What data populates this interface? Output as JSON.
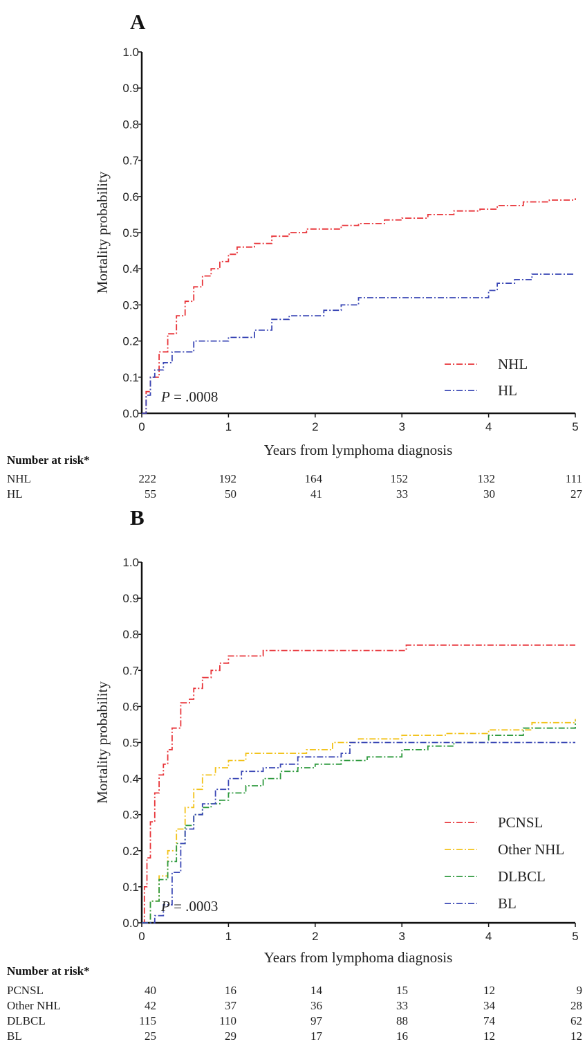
{
  "chart_data": [
    {
      "type": "line",
      "panel_label": "A",
      "xlabel": "Years from lymphoma diagnosis",
      "ylabel": "Mortality probability",
      "xlim": [
        0,
        5
      ],
      "ylim": [
        0,
        1.0
      ],
      "x_ticks": [
        "0",
        "1",
        "2",
        "3",
        "4",
        "5"
      ],
      "y_ticks": [
        "0.0",
        "0.1",
        "0.2",
        "0.3",
        "0.4",
        "0.5",
        "0.6",
        "0.7",
        "0.8",
        "0.9",
        "1.0"
      ],
      "annotation": {
        "p_label": "P",
        "p_value": "= .0008"
      },
      "legend_position": "bottom-right",
      "series": [
        {
          "name": "NHL",
          "color": "#e8353a",
          "points": [
            [
              0,
              0
            ],
            [
              0.05,
              0.06
            ],
            [
              0.1,
              0.1
            ],
            [
              0.2,
              0.17
            ],
            [
              0.3,
              0.22
            ],
            [
              0.4,
              0.27
            ],
            [
              0.5,
              0.31
            ],
            [
              0.6,
              0.35
            ],
            [
              0.7,
              0.38
            ],
            [
              0.8,
              0.4
            ],
            [
              0.9,
              0.42
            ],
            [
              1.0,
              0.44
            ],
            [
              1.1,
              0.46
            ],
            [
              1.3,
              0.47
            ],
            [
              1.5,
              0.49
            ],
            [
              1.7,
              0.5
            ],
            [
              1.9,
              0.51
            ],
            [
              2.0,
              0.51
            ],
            [
              2.3,
              0.52
            ],
            [
              2.5,
              0.525
            ],
            [
              2.8,
              0.535
            ],
            [
              3.0,
              0.54
            ],
            [
              3.3,
              0.55
            ],
            [
              3.6,
              0.56
            ],
            [
              3.9,
              0.565
            ],
            [
              4.1,
              0.575
            ],
            [
              4.4,
              0.585
            ],
            [
              4.7,
              0.59
            ],
            [
              5.0,
              0.595
            ]
          ]
        },
        {
          "name": "HL",
          "color": "#3a47b5",
          "points": [
            [
              0,
              0
            ],
            [
              0.05,
              0.05
            ],
            [
              0.1,
              0.1
            ],
            [
              0.15,
              0.12
            ],
            [
              0.25,
              0.14
            ],
            [
              0.35,
              0.17
            ],
            [
              0.6,
              0.2
            ],
            [
              1.0,
              0.21
            ],
            [
              1.3,
              0.23
            ],
            [
              1.5,
              0.26
            ],
            [
              1.7,
              0.27
            ],
            [
              2.1,
              0.285
            ],
            [
              2.3,
              0.3
            ],
            [
              2.5,
              0.32
            ],
            [
              3.9,
              0.32
            ],
            [
              4.0,
              0.34
            ],
            [
              4.1,
              0.36
            ],
            [
              4.3,
              0.37
            ],
            [
              4.5,
              0.385
            ],
            [
              5.0,
              0.385
            ]
          ]
        }
      ],
      "risk_table": {
        "title": "Number at risk*",
        "rows": [
          {
            "label": "NHL",
            "values": [
              "222",
              "192",
              "164",
              "152",
              "132",
              "111"
            ]
          },
          {
            "label": "HL",
            "values": [
              "55",
              "50",
              "41",
              "33",
              "30",
              "27"
            ]
          }
        ]
      }
    },
    {
      "type": "line",
      "panel_label": "B",
      "xlabel": "Years from lymphoma diagnosis",
      "ylabel": "Mortality probability",
      "xlim": [
        0,
        5
      ],
      "ylim": [
        0,
        1.0
      ],
      "x_ticks": [
        "0",
        "1",
        "2",
        "3",
        "4",
        "5"
      ],
      "y_ticks": [
        "0.0",
        "0.1",
        "0.2",
        "0.3",
        "0.4",
        "0.5",
        "0.6",
        "0.7",
        "0.8",
        "0.9",
        "1.0"
      ],
      "annotation": {
        "p_label": "P",
        "p_value": "= .0003"
      },
      "legend_position": "bottom-right",
      "series": [
        {
          "name": "PCNSL",
          "color": "#e8353a",
          "points": [
            [
              0,
              0
            ],
            [
              0.03,
              0.1
            ],
            [
              0.06,
              0.18
            ],
            [
              0.1,
              0.28
            ],
            [
              0.15,
              0.36
            ],
            [
              0.2,
              0.41
            ],
            [
              0.25,
              0.44
            ],
            [
              0.3,
              0.48
            ],
            [
              0.35,
              0.54
            ],
            [
              0.45,
              0.61
            ],
            [
              0.55,
              0.62
            ],
            [
              0.6,
              0.65
            ],
            [
              0.7,
              0.68
            ],
            [
              0.8,
              0.7
            ],
            [
              0.9,
              0.72
            ],
            [
              1.0,
              0.74
            ],
            [
              1.2,
              0.74
            ],
            [
              1.4,
              0.755
            ],
            [
              2.0,
              0.755
            ],
            [
              3.0,
              0.755
            ],
            [
              3.05,
              0.77
            ],
            [
              5.0,
              0.77
            ]
          ]
        },
        {
          "name": "Other NHL",
          "color": "#f2c21a",
          "points": [
            [
              0,
              0
            ],
            [
              0.1,
              0.06
            ],
            [
              0.2,
              0.13
            ],
            [
              0.3,
              0.2
            ],
            [
              0.4,
              0.26
            ],
            [
              0.5,
              0.32
            ],
            [
              0.6,
              0.37
            ],
            [
              0.7,
              0.41
            ],
            [
              0.85,
              0.43
            ],
            [
              1.0,
              0.45
            ],
            [
              1.2,
              0.47
            ],
            [
              1.6,
              0.47
            ],
            [
              1.9,
              0.48
            ],
            [
              2.2,
              0.5
            ],
            [
              2.5,
              0.51
            ],
            [
              3.0,
              0.52
            ],
            [
              3.5,
              0.525
            ],
            [
              4.0,
              0.535
            ],
            [
              4.5,
              0.555
            ],
            [
              5.0,
              0.565
            ]
          ]
        },
        {
          "name": "DLBCL",
          "color": "#2e9a3e",
          "points": [
            [
              0,
              0
            ],
            [
              0.1,
              0.06
            ],
            [
              0.2,
              0.12
            ],
            [
              0.3,
              0.17
            ],
            [
              0.4,
              0.22
            ],
            [
              0.5,
              0.27
            ],
            [
              0.6,
              0.3
            ],
            [
              0.7,
              0.32
            ],
            [
              0.8,
              0.33
            ],
            [
              0.9,
              0.34
            ],
            [
              1.0,
              0.36
            ],
            [
              1.2,
              0.38
            ],
            [
              1.4,
              0.4
            ],
            [
              1.6,
              0.42
            ],
            [
              1.8,
              0.43
            ],
            [
              2.0,
              0.44
            ],
            [
              2.3,
              0.45
            ],
            [
              2.6,
              0.46
            ],
            [
              3.0,
              0.48
            ],
            [
              3.3,
              0.49
            ],
            [
              3.6,
              0.5
            ],
            [
              4.0,
              0.52
            ],
            [
              4.4,
              0.54
            ],
            [
              5.0,
              0.56
            ]
          ]
        },
        {
          "name": "BL",
          "color": "#3a47b5",
          "points": [
            [
              0,
              0
            ],
            [
              0.1,
              0
            ],
            [
              0.15,
              0.02
            ],
            [
              0.25,
              0.05
            ],
            [
              0.35,
              0.14
            ],
            [
              0.45,
              0.22
            ],
            [
              0.5,
              0.26
            ],
            [
              0.6,
              0.3
            ],
            [
              0.7,
              0.33
            ],
            [
              0.85,
              0.37
            ],
            [
              1.0,
              0.4
            ],
            [
              1.15,
              0.42
            ],
            [
              1.4,
              0.43
            ],
            [
              1.6,
              0.44
            ],
            [
              1.8,
              0.46
            ],
            [
              2.3,
              0.47
            ],
            [
              2.4,
              0.5
            ],
            [
              5.0,
              0.5
            ]
          ]
        }
      ],
      "risk_table": {
        "title": "Number at risk*",
        "rows": [
          {
            "label": "PCNSL",
            "values": [
              "40",
              "16",
              "14",
              "15",
              "12",
              "9"
            ]
          },
          {
            "label": "Other NHL",
            "values": [
              "42",
              "37",
              "36",
              "33",
              "34",
              "28"
            ]
          },
          {
            "label": "DLBCL",
            "values": [
              "115",
              "110",
              "97",
              "88",
              "74",
              "62"
            ]
          },
          {
            "label": "BL",
            "values": [
              "25",
              "29",
              "17",
              "16",
              "12",
              "12"
            ]
          }
        ]
      }
    }
  ]
}
